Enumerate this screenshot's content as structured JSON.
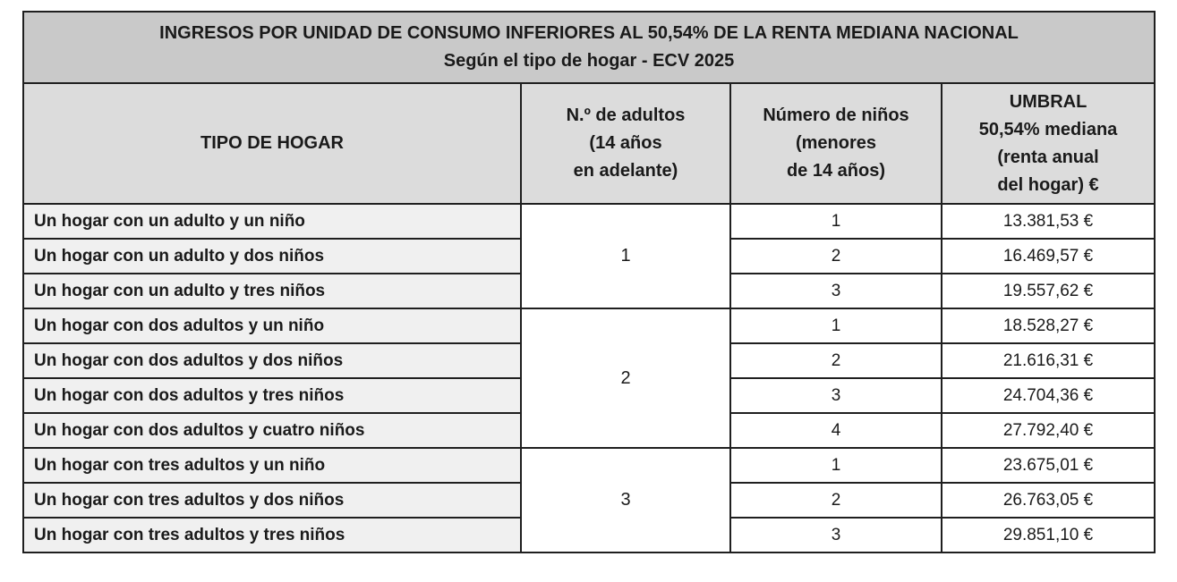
{
  "title": {
    "line1": "INGRESOS POR UNIDAD DE CONSUMO INFERIORES AL 50,54% DE LA RENTA MEDIANA NACIONAL",
    "line2": "Según el tipo de hogar - ECV 2025"
  },
  "headers": {
    "tipo": "TIPO DE HOGAR",
    "adultos": [
      "N.º de adultos",
      "(14 años",
      "en adelante)"
    ],
    "ninos": [
      "Número de niños",
      "(menores",
      "de 14 años)"
    ],
    "umbral": [
      "UMBRAL",
      "50,54% mediana",
      "(renta anual",
      "del hogar) €"
    ]
  },
  "groups": [
    {
      "adults": "1",
      "rows": [
        {
          "tipo": "Un hogar con un adulto y un niño",
          "ninos": "1",
          "umbral": "13.381,53 €"
        },
        {
          "tipo": "Un hogar con un adulto y dos niños",
          "ninos": "2",
          "umbral": "16.469,57 €"
        },
        {
          "tipo": "Un hogar con un adulto y tres niños",
          "ninos": "3",
          "umbral": "19.557,62 €"
        }
      ]
    },
    {
      "adults": "2",
      "rows": [
        {
          "tipo": "Un hogar con dos adultos y un niño",
          "ninos": "1",
          "umbral": "18.528,27 €"
        },
        {
          "tipo": "Un hogar con dos adultos y dos niños",
          "ninos": "2",
          "umbral": "21.616,31 €"
        },
        {
          "tipo": "Un hogar con dos adultos y tres niños",
          "ninos": "3",
          "umbral": "24.704,36 €"
        },
        {
          "tipo": "Un hogar con dos adultos y cuatro niños",
          "ninos": "4",
          "umbral": "27.792,40 €"
        }
      ]
    },
    {
      "adults": "3",
      "rows": [
        {
          "tipo": "Un hogar con tres adultos y un niño",
          "ninos": "1",
          "umbral": "23.675,01 €"
        },
        {
          "tipo": "Un hogar con tres adultos y dos niños",
          "ninos": "2",
          "umbral": "26.763,05 €"
        },
        {
          "tipo": "Un hogar con tres adultos y tres niños",
          "ninos": "3",
          "umbral": "29.851,10 €"
        }
      ]
    }
  ]
}
